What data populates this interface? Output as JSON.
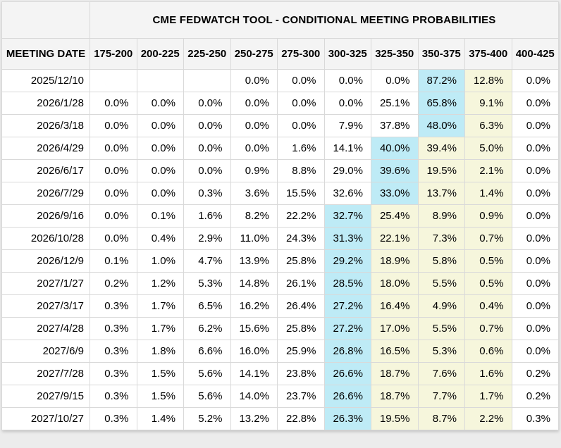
{
  "table": {
    "title": "CME FEDWATCH TOOL - CONDITIONAL MEETING PROBABILITIES",
    "columns": [
      "MEETING DATE",
      "175-200",
      "200-225",
      "225-250",
      "250-275",
      "275-300",
      "300-325",
      "325-350",
      "350-375",
      "375-400",
      "400-425"
    ],
    "rows": [
      {
        "date": "2025/12/10",
        "values": [
          "",
          "",
          "",
          "0.0%",
          "0.0%",
          "0.0%",
          "0.0%",
          "87.2%",
          "12.8%",
          "0.0%"
        ],
        "highlights": [
          "",
          "",
          "",
          "",
          "",
          "",
          "",
          "blue",
          "yellow",
          ""
        ]
      },
      {
        "date": "2026/1/28",
        "values": [
          "0.0%",
          "0.0%",
          "0.0%",
          "0.0%",
          "0.0%",
          "0.0%",
          "25.1%",
          "65.8%",
          "9.1%",
          "0.0%"
        ],
        "highlights": [
          "",
          "",
          "",
          "",
          "",
          "",
          "",
          "blue",
          "yellow",
          ""
        ]
      },
      {
        "date": "2026/3/18",
        "values": [
          "0.0%",
          "0.0%",
          "0.0%",
          "0.0%",
          "0.0%",
          "7.9%",
          "37.8%",
          "48.0%",
          "6.3%",
          "0.0%"
        ],
        "highlights": [
          "",
          "",
          "",
          "",
          "",
          "",
          "",
          "blue",
          "yellow",
          ""
        ]
      },
      {
        "date": "2026/4/29",
        "values": [
          "0.0%",
          "0.0%",
          "0.0%",
          "0.0%",
          "1.6%",
          "14.1%",
          "40.0%",
          "39.4%",
          "5.0%",
          "0.0%"
        ],
        "highlights": [
          "",
          "",
          "",
          "",
          "",
          "",
          "blue",
          "yellow",
          "yellow",
          ""
        ]
      },
      {
        "date": "2026/6/17",
        "values": [
          "0.0%",
          "0.0%",
          "0.0%",
          "0.9%",
          "8.8%",
          "29.0%",
          "39.6%",
          "19.5%",
          "2.1%",
          "0.0%"
        ],
        "highlights": [
          "",
          "",
          "",
          "",
          "",
          "",
          "blue",
          "yellow",
          "yellow",
          ""
        ]
      },
      {
        "date": "2026/7/29",
        "values": [
          "0.0%",
          "0.0%",
          "0.3%",
          "3.6%",
          "15.5%",
          "32.6%",
          "33.0%",
          "13.7%",
          "1.4%",
          "0.0%"
        ],
        "highlights": [
          "",
          "",
          "",
          "",
          "",
          "",
          "blue",
          "yellow",
          "yellow",
          ""
        ]
      },
      {
        "date": "2026/9/16",
        "values": [
          "0.0%",
          "0.1%",
          "1.6%",
          "8.2%",
          "22.2%",
          "32.7%",
          "25.4%",
          "8.9%",
          "0.9%",
          "0.0%"
        ],
        "highlights": [
          "",
          "",
          "",
          "",
          "",
          "blue",
          "yellow",
          "yellow",
          "yellow",
          ""
        ]
      },
      {
        "date": "2026/10/28",
        "values": [
          "0.0%",
          "0.4%",
          "2.9%",
          "11.0%",
          "24.3%",
          "31.3%",
          "22.1%",
          "7.3%",
          "0.7%",
          "0.0%"
        ],
        "highlights": [
          "",
          "",
          "",
          "",
          "",
          "blue",
          "yellow",
          "yellow",
          "yellow",
          ""
        ]
      },
      {
        "date": "2026/12/9",
        "values": [
          "0.1%",
          "1.0%",
          "4.7%",
          "13.9%",
          "25.8%",
          "29.2%",
          "18.9%",
          "5.8%",
          "0.5%",
          "0.0%"
        ],
        "highlights": [
          "",
          "",
          "",
          "",
          "",
          "blue",
          "yellow",
          "yellow",
          "yellow",
          ""
        ]
      },
      {
        "date": "2027/1/27",
        "values": [
          "0.2%",
          "1.2%",
          "5.3%",
          "14.8%",
          "26.1%",
          "28.5%",
          "18.0%",
          "5.5%",
          "0.5%",
          "0.0%"
        ],
        "highlights": [
          "",
          "",
          "",
          "",
          "",
          "blue",
          "yellow",
          "yellow",
          "yellow",
          ""
        ]
      },
      {
        "date": "2027/3/17",
        "values": [
          "0.3%",
          "1.7%",
          "6.5%",
          "16.2%",
          "26.4%",
          "27.2%",
          "16.4%",
          "4.9%",
          "0.4%",
          "0.0%"
        ],
        "highlights": [
          "",
          "",
          "",
          "",
          "",
          "blue",
          "yellow",
          "yellow",
          "yellow",
          ""
        ]
      },
      {
        "date": "2027/4/28",
        "values": [
          "0.3%",
          "1.7%",
          "6.2%",
          "15.6%",
          "25.8%",
          "27.2%",
          "17.0%",
          "5.5%",
          "0.7%",
          "0.0%"
        ],
        "highlights": [
          "",
          "",
          "",
          "",
          "",
          "blue",
          "yellow",
          "yellow",
          "yellow",
          ""
        ]
      },
      {
        "date": "2027/6/9",
        "values": [
          "0.3%",
          "1.8%",
          "6.6%",
          "16.0%",
          "25.9%",
          "26.8%",
          "16.5%",
          "5.3%",
          "0.6%",
          "0.0%"
        ],
        "highlights": [
          "",
          "",
          "",
          "",
          "",
          "blue",
          "yellow",
          "yellow",
          "yellow",
          ""
        ]
      },
      {
        "date": "2027/7/28",
        "values": [
          "0.3%",
          "1.5%",
          "5.6%",
          "14.1%",
          "23.8%",
          "26.6%",
          "18.7%",
          "7.6%",
          "1.6%",
          "0.2%"
        ],
        "highlights": [
          "",
          "",
          "",
          "",
          "",
          "blue",
          "yellow",
          "yellow",
          "yellow",
          ""
        ]
      },
      {
        "date": "2027/9/15",
        "values": [
          "0.3%",
          "1.5%",
          "5.6%",
          "14.0%",
          "23.7%",
          "26.6%",
          "18.7%",
          "7.7%",
          "1.7%",
          "0.2%"
        ],
        "highlights": [
          "",
          "",
          "",
          "",
          "",
          "blue",
          "yellow",
          "yellow",
          "yellow",
          ""
        ]
      },
      {
        "date": "2027/10/27",
        "values": [
          "0.3%",
          "1.4%",
          "5.2%",
          "13.2%",
          "22.8%",
          "26.3%",
          "19.5%",
          "8.7%",
          "2.2%",
          "0.3%"
        ],
        "highlights": [
          "",
          "",
          "",
          "",
          "",
          "blue",
          "yellow",
          "yellow",
          "yellow",
          ""
        ]
      }
    ]
  },
  "colors": {
    "highlight_blue": "#BEEBF6",
    "highlight_yellow": "#F6F6DC",
    "header_bg": "#F4F4F4",
    "border": "#D9D9D9",
    "page_bg": "#ECECEC",
    "cell_bg": "#FFFFFF",
    "text": "#000000"
  }
}
